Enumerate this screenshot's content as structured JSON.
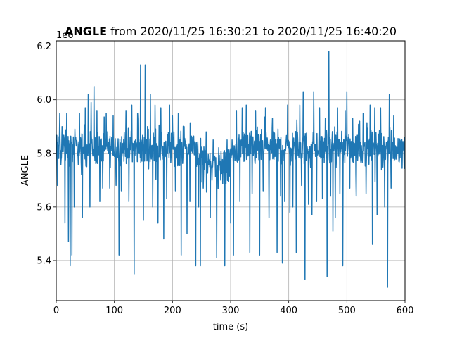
{
  "chart_data": {
    "type": "line",
    "title_bold": "ANGLE",
    "title_rest": " from 2020/11/25 16:30:21 to 2020/11/25 16:40:20",
    "xlabel": "time (s)",
    "ylabel": "ANGLE",
    "y_offset_label": "1e6",
    "xlim": [
      0,
      600
    ],
    "ylim": [
      5.25,
      6.22
    ],
    "x_ticks": [
      0,
      100,
      200,
      300,
      400,
      500,
      600
    ],
    "x_tick_labels": [
      "0",
      "100",
      "200",
      "300",
      "400",
      "500",
      "600"
    ],
    "y_ticks": [
      5.4,
      5.6,
      5.8,
      6.0,
      6.2
    ],
    "y_tick_labels": [
      "5.4",
      "5.6",
      "5.8",
      "6.0",
      "6.2"
    ],
    "grid": true,
    "series": [
      {
        "color": "#1f77b4",
        "baseline": [
          [
            0,
            5.82
          ],
          [
            240,
            5.82
          ],
          [
            255,
            5.78
          ],
          [
            270,
            5.76
          ],
          [
            290,
            5.75
          ],
          [
            305,
            5.8
          ],
          [
            320,
            5.82
          ],
          [
            600,
            5.82
          ]
        ],
        "band": 0.07,
        "spikes": [
          [
            2,
            5.68
          ],
          [
            6,
            5.95
          ],
          [
            10,
            5.9
          ],
          [
            15,
            5.54
          ],
          [
            18,
            5.95
          ],
          [
            21,
            5.47
          ],
          [
            24,
            5.38
          ],
          [
            27,
            5.42
          ],
          [
            31,
            5.6
          ],
          [
            40,
            5.95
          ],
          [
            45,
            5.56
          ],
          [
            50,
            5.97
          ],
          [
            55,
            6.02
          ],
          [
            58,
            5.6
          ],
          [
            60,
            5.99
          ],
          [
            65,
            6.05
          ],
          [
            70,
            5.96
          ],
          [
            75,
            5.62
          ],
          [
            80,
            5.67
          ],
          [
            86,
            5.95
          ],
          [
            92,
            5.67
          ],
          [
            98,
            5.94
          ],
          [
            103,
            5.68
          ],
          [
            108,
            5.42
          ],
          [
            112,
            5.66
          ],
          [
            120,
            5.96
          ],
          [
            125,
            5.62
          ],
          [
            130,
            5.98
          ],
          [
            134,
            5.35
          ],
          [
            140,
            5.95
          ],
          [
            145,
            6.13
          ],
          [
            150,
            5.55
          ],
          [
            153,
            6.13
          ],
          [
            157,
            5.9
          ],
          [
            162,
            6.02
          ],
          [
            166,
            5.6
          ],
          [
            170,
            5.98
          ],
          [
            175,
            5.54
          ],
          [
            180,
            5.97
          ],
          [
            185,
            5.48
          ],
          [
            190,
            5.63
          ],
          [
            195,
            5.98
          ],
          [
            200,
            5.94
          ],
          [
            205,
            5.66
          ],
          [
            210,
            5.95
          ],
          [
            215,
            5.42
          ],
          [
            220,
            5.9
          ],
          [
            225,
            5.5
          ],
          [
            230,
            5.62
          ],
          [
            235,
            5.86
          ],
          [
            240,
            5.38
          ],
          [
            245,
            5.6
          ],
          [
            248,
            5.38
          ],
          [
            253,
            5.67
          ],
          [
            258,
            5.88
          ],
          [
            265,
            5.56
          ],
          [
            270,
            5.85
          ],
          [
            276,
            5.41
          ],
          [
            283,
            5.7
          ],
          [
            290,
            5.38
          ],
          [
            294,
            5.85
          ],
          [
            300,
            5.54
          ],
          [
            305,
            5.42
          ],
          [
            310,
            5.96
          ],
          [
            316,
            5.62
          ],
          [
            320,
            5.97
          ],
          [
            327,
            5.98
          ],
          [
            333,
            5.43
          ],
          [
            337,
            5.65
          ],
          [
            343,
            5.96
          ],
          [
            350,
            5.42
          ],
          [
            356,
            5.66
          ],
          [
            360,
            5.97
          ],
          [
            366,
            5.56
          ],
          [
            372,
            5.93
          ],
          [
            380,
            5.43
          ],
          [
            386,
            5.64
          ],
          [
            389,
            5.39
          ],
          [
            393,
            5.62
          ],
          [
            398,
            5.98
          ],
          [
            402,
            5.58
          ],
          [
            407,
            5.6
          ],
          [
            413,
            5.43
          ],
          [
            419,
            5.98
          ],
          [
            422,
            5.68
          ],
          [
            425,
            6.03
          ],
          [
            428,
            5.33
          ],
          [
            434,
            5.61
          ],
          [
            440,
            5.57
          ],
          [
            443,
            6.03
          ],
          [
            448,
            5.62
          ],
          [
            453,
            5.97
          ],
          [
            458,
            5.63
          ],
          [
            463,
            5.93
          ],
          [
            466,
            5.34
          ],
          [
            469,
            6.18
          ],
          [
            472,
            5.64
          ],
          [
            476,
            5.51
          ],
          [
            480,
            5.56
          ],
          [
            484,
            5.97
          ],
          [
            488,
            5.65
          ],
          [
            493,
            5.38
          ],
          [
            497,
            5.96
          ],
          [
            500,
            6.03
          ],
          [
            505,
            5.67
          ],
          [
            510,
            5.93
          ],
          [
            516,
            5.64
          ],
          [
            522,
            5.92
          ],
          [
            528,
            5.95
          ],
          [
            533,
            5.65
          ],
          [
            540,
            5.98
          ],
          [
            544,
            5.46
          ],
          [
            548,
            5.97
          ],
          [
            552,
            5.57
          ],
          [
            558,
            5.97
          ],
          [
            565,
            5.6
          ],
          [
            570,
            5.3
          ],
          [
            573,
            6.02
          ],
          [
            576,
            5.67
          ]
        ]
      }
    ]
  }
}
